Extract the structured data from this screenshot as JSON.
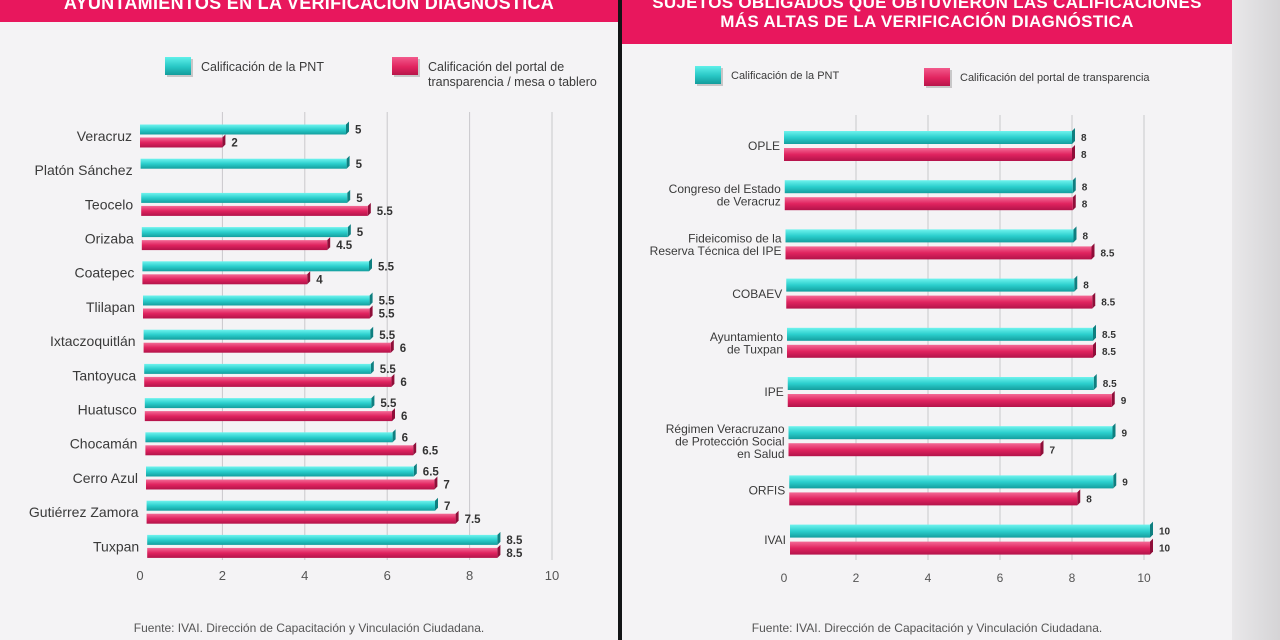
{
  "left": {
    "title": "AYUNTAMIENTOS EN LA VERIFICACIÓN DIAGNÓSTICA",
    "legend": {
      "pnt": "Calificación de la PNT",
      "portal": "Calificación del portal de\ntransparencia / mesa o tablero"
    },
    "source": "Fuente: IVAI. Dirección de Capacitación y Vinculación Ciudadana."
  },
  "right": {
    "title_line1": "SUJETOS OBLIGADOS QUE OBTUVIERON LAS CALIFICACIONES",
    "title_line2": "MÁS ALTAS DE LA VERIFICACIÓN DIAGNÓSTICA",
    "legend": {
      "pnt": "Calificación de la PNT",
      "portal": "Calificación del portal de transparencia"
    },
    "source": "Fuente: IVAI. Dirección de Capacitación y Vinculación Ciudadana."
  },
  "colors": {
    "teal": "#2bcfcd",
    "pink": "#e0235f",
    "banner": "#e8175d"
  },
  "chart_data": [
    {
      "type": "bar",
      "orientation": "horizontal",
      "title": "AYUNTAMIENTOS EN LA VERIFICACIÓN DIAGNÓSTICA",
      "categories": [
        "Veracruz",
        "Platón Sánchez",
        "Teocelo",
        "Orizaba",
        "Coatepec",
        "Tlilapan",
        "Ixtaczoquitlán",
        "Tantoyuca",
        "Huatusco",
        "Chocamán",
        "Cerro Azul",
        "Gutiérrez Zamora",
        "Tuxpan"
      ],
      "series": [
        {
          "name": "Calificación de la PNT",
          "values": [
            5,
            5,
            5,
            5,
            5.5,
            5.5,
            5.5,
            5.5,
            5.5,
            6,
            6.5,
            7,
            8.5
          ]
        },
        {
          "name": "Calificación del portal de transparencia / mesa o tablero",
          "values": [
            2,
            null,
            5.5,
            4.5,
            4,
            5.5,
            6,
            6,
            6,
            6.5,
            7,
            7.5,
            8.5
          ]
        }
      ],
      "value_labels": [
        [
          "5",
          "5",
          "5",
          "5",
          "5.5",
          "5.5",
          "5.5",
          "5.5",
          "5.5",
          "6",
          "6.5",
          "7",
          "8.5"
        ],
        [
          "2",
          "",
          "5.5",
          "4.5",
          "4",
          "5.5",
          "6",
          "6",
          "6",
          "6.5",
          "7",
          "7.5",
          "8.5"
        ]
      ],
      "xlim": [
        0,
        10
      ],
      "xticks": [
        "0",
        "2",
        "4",
        "6",
        "8",
        "10"
      ],
      "grid": true,
      "legend_position": "top"
    },
    {
      "type": "bar",
      "orientation": "horizontal",
      "title": "SUJETOS OBLIGADOS QUE OBTUVIERON LAS CALIFICACIONES MÁS ALTAS DE LA VERIFICACIÓN DIAGNÓSTICA",
      "categories": [
        [
          "OPLE"
        ],
        [
          "Congreso del Estado",
          "de Veracruz"
        ],
        [
          "Fideicomiso de la",
          "Reserva Técnica del IPE"
        ],
        [
          "COBAEV"
        ],
        [
          "Ayuntamiento",
          "de Tuxpan"
        ],
        [
          "IPE"
        ],
        [
          "Régimen Veracruzano",
          "de Protección Social",
          "en Salud"
        ],
        [
          "ORFIS"
        ],
        [
          "IVAI"
        ]
      ],
      "series": [
        {
          "name": "Calificación de la PNT",
          "values": [
            8,
            8,
            8,
            8,
            8.5,
            8.5,
            9,
            9,
            10
          ]
        },
        {
          "name": "Calificación del portal de transparencia",
          "values": [
            8,
            8,
            8.5,
            8.5,
            8.5,
            9,
            7,
            8,
            10
          ]
        }
      ],
      "value_labels": [
        [
          "8",
          "8",
          "8",
          "8",
          "8.5",
          "8.5",
          "9",
          "9",
          "10"
        ],
        [
          "8",
          "8",
          "8.5",
          "8.5",
          "8.5",
          "9",
          "7",
          "8",
          "10"
        ]
      ],
      "xlim": [
        0,
        10
      ],
      "xticks": [
        "0",
        "2",
        "4",
        "6",
        "8",
        "10"
      ],
      "grid": true,
      "legend_position": "top"
    }
  ]
}
